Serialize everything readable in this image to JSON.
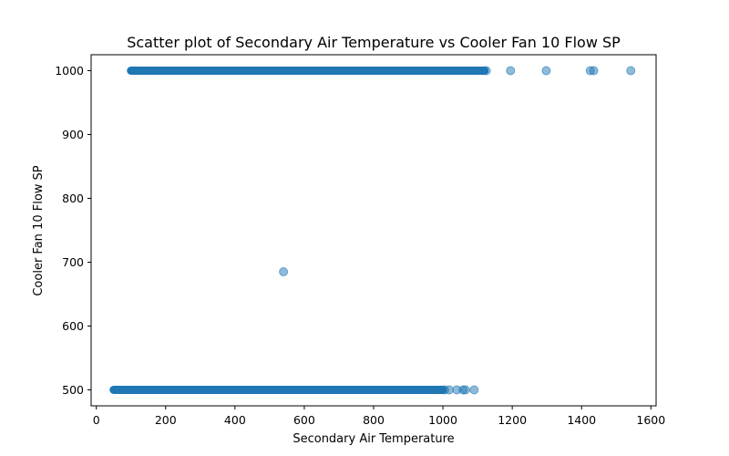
{
  "chart_data": {
    "type": "scatter",
    "title": "Scatter plot of Secondary Air Temperature vs Cooler Fan 10 Flow SP",
    "xlabel": "Secondary Air Temperature",
    "ylabel": "Cooler Fan 10 Flow SP",
    "xlim": [
      -15,
      1615
    ],
    "ylim": [
      475,
      1025
    ],
    "xticks": [
      0,
      200,
      400,
      600,
      800,
      1000,
      1200,
      1400,
      1600
    ],
    "yticks": [
      500,
      600,
      700,
      800,
      900,
      1000
    ],
    "grid": false,
    "legend": "none",
    "marker_color": "#1f77b4",
    "marker_alpha": 0.5,
    "band_points": [
      {
        "x_start": 50,
        "x_end": 1000,
        "y": 500
      },
      {
        "x_start": 100,
        "x_end": 1120,
        "y": 1000
      }
    ],
    "points": [
      {
        "x": 1005,
        "y": 500
      },
      {
        "x": 1018,
        "y": 500
      },
      {
        "x": 1040,
        "y": 500
      },
      {
        "x": 1058,
        "y": 500
      },
      {
        "x": 1065,
        "y": 500
      },
      {
        "x": 1090,
        "y": 500
      },
      {
        "x": 1125,
        "y": 1000
      },
      {
        "x": 1195,
        "y": 1000
      },
      {
        "x": 1298,
        "y": 1000
      },
      {
        "x": 1425,
        "y": 1000
      },
      {
        "x": 1435,
        "y": 1000
      },
      {
        "x": 1542,
        "y": 1000
      },
      {
        "x": 540,
        "y": 685
      }
    ]
  }
}
